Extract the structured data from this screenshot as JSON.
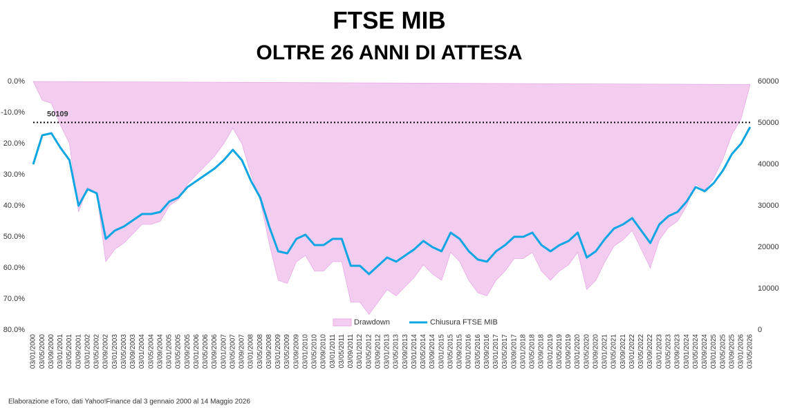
{
  "chart_data": {
    "type": "drawdown-line",
    "title": "FTSE MIB",
    "subtitle": "OLTRE 26 ANNI DI ATTESA",
    "note": "Elaborazione eToro, dati Yahoo!Finance dal 3 gennaio 2000 al 14 Maggio 2026",
    "categories": [
      "03/01/2000",
      "03/05/2000",
      "03/09/2000",
      "03/01/2001",
      "03/05/2001",
      "03/09/2001",
      "03/01/2002",
      "03/05/2002",
      "03/09/2002",
      "03/01/2003",
      "03/05/2003",
      "03/09/2003",
      "03/01/2004",
      "03/05/2004",
      "03/09/2004",
      "03/01/2005",
      "03/05/2005",
      "03/09/2005",
      "03/01/2006",
      "03/05/2006",
      "03/09/2006",
      "03/01/2007",
      "03/05/2007",
      "03/09/2007",
      "03/01/2008",
      "03/05/2008",
      "03/09/2008",
      "03/01/2009",
      "03/05/2009",
      "03/09/2009",
      "03/01/2010",
      "03/05/2010",
      "03/09/2010",
      "03/01/2011",
      "03/05/2011",
      "03/09/2011",
      "03/01/2012",
      "03/05/2012",
      "03/09/2012",
      "03/01/2013",
      "03/05/2013",
      "03/09/2013",
      "03/01/2014",
      "03/05/2014",
      "03/09/2014",
      "03/01/2015",
      "03/05/2015",
      "03/09/2015",
      "03/01/2016",
      "03/05/2016",
      "03/09/2016",
      "03/01/2017",
      "03/05/2017",
      "03/09/2017",
      "03/01/2018",
      "03/05/2018",
      "03/09/2018",
      "03/01/2019",
      "03/05/2019",
      "03/09/2019",
      "03/01/2020",
      "03/05/2020",
      "03/09/2020",
      "03/01/2021",
      "03/05/2021",
      "03/09/2021",
      "03/01/2022",
      "03/05/2022",
      "03/09/2022",
      "03/01/2023",
      "03/05/2023",
      "03/09/2023",
      "03/01/2024",
      "03/05/2024",
      "03/09/2024",
      "03/01/2025",
      "03/05/2025",
      "03/09/2025",
      "03/01/2026",
      "03/05/2026"
    ],
    "series": [
      {
        "name": "Drawdown",
        "type": "area",
        "color": "#f2cdf0",
        "axis": "y",
        "values": [
          0,
          -6,
          -7,
          -14,
          -20,
          -42,
          -34,
          -36,
          -58,
          -54,
          -52,
          -49,
          -46,
          -46,
          -45,
          -40,
          -38,
          -33,
          -30,
          -27,
          -24,
          -20,
          -15,
          -20,
          -30,
          -38,
          -52,
          -64,
          -65,
          -58,
          -56,
          -61,
          -61,
          -58,
          -58,
          -71,
          -71,
          -75,
          -71,
          -67,
          -69,
          -66,
          -63,
          -59,
          -62,
          -64,
          -55,
          -58,
          -64,
          -68,
          -69,
          -64,
          -61,
          -57,
          -57,
          -55,
          -61,
          -64,
          -61,
          -59,
          -55,
          -67,
          -64,
          -58,
          -53,
          -51,
          -48,
          -54,
          -60,
          -51,
          -47,
          -45,
          -40,
          -33,
          -35,
          -31,
          -25,
          -17,
          -12,
          -1
        ]
      },
      {
        "name": "Chiusura FTSE MIB",
        "type": "line",
        "color": "#0ea5e3",
        "axis": "y2",
        "values": [
          40000,
          47000,
          47500,
          44000,
          41000,
          30000,
          34000,
          33000,
          22000,
          24000,
          25000,
          26500,
          28000,
          28000,
          28500,
          31000,
          32000,
          34500,
          36000,
          37500,
          39000,
          41000,
          43500,
          41000,
          36000,
          32000,
          25000,
          19000,
          18500,
          22000,
          23000,
          20500,
          20500,
          22000,
          22000,
          15500,
          15500,
          13500,
          15500,
          17500,
          16500,
          18000,
          19500,
          21500,
          20000,
          19000,
          23500,
          22000,
          19000,
          17000,
          16500,
          19000,
          20500,
          22500,
          22500,
          23500,
          20500,
          19000,
          20500,
          21500,
          23500,
          17500,
          19000,
          22000,
          24500,
          25500,
          27000,
          24000,
          21000,
          25500,
          27500,
          28500,
          31000,
          34500,
          33500,
          35500,
          38500,
          42500,
          45000,
          49000
        ]
      }
    ],
    "reference_line": 50109,
    "ylim": [
      -80,
      0
    ],
    "yticks": [
      {
        "value": 0,
        "label": "0.0%"
      },
      {
        "value": -10,
        "label": "-10.0%"
      },
      {
        "value": -20,
        "label": "20.0%"
      },
      {
        "value": -30,
        "label": "30.0%"
      },
      {
        "value": -40,
        "label": "40.0%"
      },
      {
        "value": -50,
        "label": "50.0%"
      },
      {
        "value": -60,
        "label": "60.0%"
      },
      {
        "value": -70,
        "label": "70.0%"
      },
      {
        "value": -80,
        "label": "80.0%"
      }
    ],
    "y2lim": [
      0,
      60000
    ],
    "y2ticks": [
      0,
      10000,
      20000,
      30000,
      40000,
      50000,
      60000
    ],
    "legend": "bottom"
  }
}
